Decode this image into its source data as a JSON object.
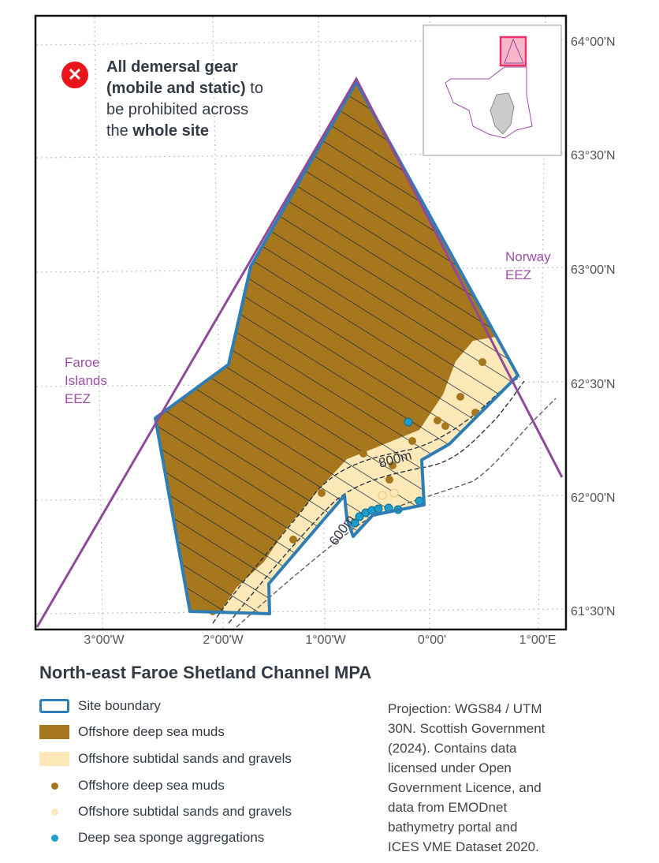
{
  "title": "North-east Faroe Shetland Channel MPA",
  "annotation": {
    "icon": "prohibited-x-icon",
    "line1_bold": "All demersal gear",
    "line2_bold": "(mobile and static)",
    "line2_rest": " to",
    "line3": "be prohibited across",
    "line4_pre": "the ",
    "line4_bold": "whole site"
  },
  "latitude_labels": [
    "64°00'N",
    "63°30'N",
    "63°00'N",
    "62°30'N",
    "62°00'N",
    "61°30'N"
  ],
  "longitude_labels": [
    "3°00'W",
    "2°00'W",
    "1°00'W",
    "0°00'",
    "1°00'E"
  ],
  "eez_labels": {
    "faroe": [
      "Faroe",
      "Islands",
      "EEZ"
    ],
    "norway": [
      "Norway",
      "EEZ"
    ]
  },
  "contours": [
    "800m",
    "600m"
  ],
  "colors": {
    "site_boundary": "#2f7db5",
    "deep_sea_muds": "#a6771c",
    "sands_gravels": "#fde9b8",
    "sponge": "#1e9ccc",
    "eez": "#8f4a9a",
    "inset_highlight": "#f06292"
  },
  "legend": [
    {
      "label": "Site boundary",
      "type": "outline"
    },
    {
      "label": "Offshore deep sea muds",
      "type": "fill-muds"
    },
    {
      "label": "Offshore subtidal sands and gravels",
      "type": "fill-sands"
    },
    {
      "label": "Offshore deep sea muds",
      "type": "point-muds"
    },
    {
      "label": "Offshore subtidal sands and gravels",
      "type": "point-sands"
    },
    {
      "label": "Deep sea sponge aggregations",
      "type": "point-sponge"
    }
  ],
  "credit": [
    "Projection: WGS84 / UTM",
    "30N. Scottish Government",
    "(2024). Contains data",
    "licensed under Open",
    "Government Licence, and",
    "data from EMODnet",
    "bathymetry portal and",
    "ICES VME Dataset 2020."
  ]
}
